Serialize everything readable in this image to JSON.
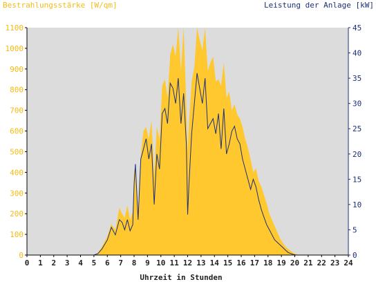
{
  "chart_data": {
    "type": "area",
    "title_left": "Bestrahlungsstärke [W/qm]",
    "title_right": "Leistung der Anlage [kW]",
    "xlabel": "Uhrzeit in Stunden",
    "xlim": [
      0,
      24
    ],
    "ylim_left": [
      0,
      1100
    ],
    "ylim_right": [
      0,
      45
    ],
    "x_ticks": [
      "0",
      "1",
      "2",
      "3",
      "4",
      "5",
      "6",
      "7",
      "8",
      "9",
      "10",
      "11",
      "12",
      "13",
      "14",
      "15",
      "16",
      "17",
      "18",
      "19",
      "20",
      "21",
      "22",
      "23",
      "24"
    ],
    "y_left_ticks": [
      "0",
      "100",
      "200",
      "300",
      "400",
      "500",
      "600",
      "700",
      "800",
      "900",
      "1000",
      "1100"
    ],
    "y_right_ticks": [
      "0",
      "5",
      "10",
      "15",
      "20",
      "25",
      "30",
      "35",
      "40",
      "45"
    ],
    "grid": false,
    "colors": {
      "plot_bg": "#dcdcdc",
      "irradiance": "#ffc82e",
      "power": "#1c2f78",
      "left_axis": "#f5bb10",
      "right_axis": "#1c2f78"
    },
    "series": [
      {
        "name": "Bestrahlungsstärke",
        "axis": "left",
        "x": [
          0,
          5.0,
          5.3,
          5.6,
          6.0,
          6.3,
          6.6,
          6.9,
          7.1,
          7.3,
          7.5,
          7.7,
          7.9,
          8.0,
          8.1,
          8.3,
          8.5,
          8.7,
          8.9,
          9.1,
          9.3,
          9.5,
          9.7,
          9.9,
          10.1,
          10.3,
          10.5,
          10.7,
          10.9,
          11.1,
          11.3,
          11.5,
          11.7,
          11.9,
          12.0,
          12.1,
          12.3,
          12.5,
          12.7,
          12.9,
          13.1,
          13.3,
          13.5,
          13.7,
          13.9,
          14.1,
          14.3,
          14.5,
          14.7,
          14.9,
          15.1,
          15.3,
          15.5,
          15.7,
          15.9,
          16.1,
          16.3,
          16.5,
          16.7,
          16.9,
          17.1,
          17.3,
          17.5,
          17.7,
          17.9,
          18.1,
          18.3,
          18.5,
          18.7,
          18.9,
          19.1,
          19.3,
          19.5,
          19.7,
          19.9,
          20.1,
          20.3,
          20.5,
          24
        ],
        "values": [
          0,
          0,
          10,
          40,
          90,
          150,
          120,
          230,
          200,
          180,
          240,
          170,
          210,
          400,
          430,
          220,
          480,
          600,
          620,
          560,
          650,
          390,
          620,
          560,
          820,
          850,
          760,
          970,
          1020,
          960,
          1100,
          890,
          1100,
          720,
          500,
          640,
          840,
          910,
          1100,
          1040,
          990,
          1100,
          890,
          930,
          960,
          840,
          850,
          820,
          930,
          760,
          790,
          700,
          730,
          680,
          660,
          620,
          560,
          520,
          460,
          400,
          420,
          360,
          330,
          290,
          250,
          200,
          170,
          140,
          110,
          80,
          60,
          40,
          30,
          20,
          10,
          5,
          0,
          0,
          0
        ]
      },
      {
        "name": "Leistung der Anlage",
        "axis": "right",
        "x": [
          0,
          5.0,
          5.3,
          5.6,
          6.0,
          6.3,
          6.6,
          6.9,
          7.1,
          7.3,
          7.5,
          7.7,
          7.9,
          8.0,
          8.1,
          8.3,
          8.5,
          8.7,
          8.9,
          9.1,
          9.3,
          9.5,
          9.7,
          9.9,
          10.1,
          10.3,
          10.5,
          10.7,
          10.9,
          11.1,
          11.3,
          11.5,
          11.7,
          11.9,
          12.0,
          12.1,
          12.3,
          12.5,
          12.7,
          12.9,
          13.1,
          13.3,
          13.5,
          13.7,
          13.9,
          14.1,
          14.3,
          14.5,
          14.7,
          14.9,
          15.1,
          15.3,
          15.5,
          15.7,
          15.9,
          16.1,
          16.3,
          16.5,
          16.7,
          16.9,
          17.1,
          17.3,
          17.5,
          17.7,
          17.9,
          18.1,
          18.3,
          18.5,
          18.7,
          18.9,
          19.1,
          19.3,
          19.5,
          19.7,
          19.9,
          20.1,
          20.3,
          20.5,
          24
        ],
        "values": [
          0,
          0,
          0.3,
          1.2,
          3.0,
          5.5,
          4.0,
          7.0,
          6.5,
          5.0,
          7.0,
          4.8,
          6.0,
          14.0,
          18.0,
          7.0,
          19.0,
          21.0,
          23.0,
          19.0,
          22.0,
          10.0,
          20.0,
          17.0,
          28.0,
          29.0,
          26.0,
          34.0,
          33.0,
          30.0,
          35.0,
          26.0,
          32.0,
          22.0,
          8.0,
          14.0,
          24.0,
          30.0,
          36.0,
          33.0,
          30.0,
          35.0,
          25.0,
          26.0,
          27.0,
          24.0,
          28.0,
          21.0,
          29.0,
          20.0,
          22.0,
          24.5,
          25.5,
          23.0,
          22.0,
          19.0,
          17.0,
          15.0,
          13.0,
          15.0,
          13.5,
          11.0,
          9.0,
          7.5,
          6.0,
          5.0,
          4.0,
          3.0,
          2.5,
          2.0,
          1.5,
          1.0,
          0.5,
          0.3,
          0.1,
          0,
          0,
          0,
          0
        ]
      }
    ]
  }
}
